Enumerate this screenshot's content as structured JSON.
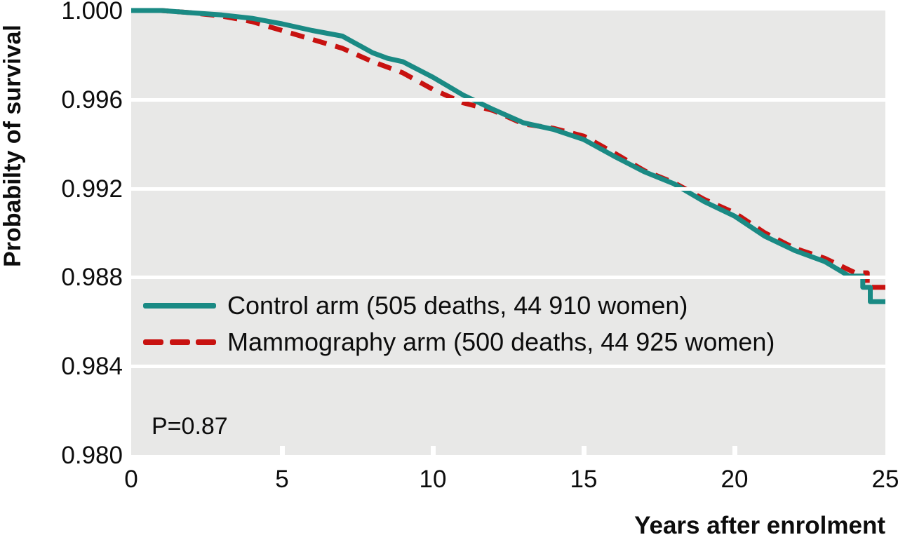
{
  "chart_data": {
    "type": "line",
    "title": "",
    "xlabel": "Years after enrolment",
    "ylabel": "Probabilty of survival",
    "xlim": [
      0,
      25
    ],
    "ylim": [
      0.98,
      1.0
    ],
    "x_ticks": [
      "0",
      "5",
      "10",
      "15",
      "20",
      "25"
    ],
    "x_tick_values": [
      0,
      5,
      10,
      15,
      20,
      25
    ],
    "x_tick_marks": [
      5,
      10,
      15,
      20
    ],
    "y_ticks": [
      "1.000",
      "0.996",
      "0.992",
      "0.988",
      "0.984",
      "0.980"
    ],
    "y_tick_values": [
      1.0,
      0.996,
      0.992,
      0.988,
      0.984,
      0.98
    ],
    "y_gridlines": [
      0.996,
      0.992,
      0.988,
      0.984
    ],
    "grid": "horizontal-white-on-gray",
    "legend_position": "inside-left-middle",
    "p_value_label": "P=0.87",
    "colors": {
      "plot_background": "#e8e8e7",
      "gridline": "#ffffff",
      "text": "#0d0d0d",
      "control": "#1a8a84",
      "mammography": "#c81210"
    },
    "series": [
      {
        "name": "Mammography arm (500 deaths, 44 925 women)",
        "color": "#c81210",
        "style": "dashed",
        "points": [
          [
            0,
            1.0
          ],
          [
            1,
            1.0
          ],
          [
            2,
            0.9999
          ],
          [
            3,
            0.99975
          ],
          [
            4,
            0.9995
          ],
          [
            5,
            0.9991
          ],
          [
            6,
            0.9987
          ],
          [
            7,
            0.9983
          ],
          [
            8,
            0.9977
          ],
          [
            9,
            0.9972
          ],
          [
            10,
            0.99645
          ],
          [
            11,
            0.99585
          ],
          [
            12,
            0.9955
          ],
          [
            13,
            0.9949
          ],
          [
            14,
            0.9947
          ],
          [
            15,
            0.99435
          ],
          [
            16,
            0.9936
          ],
          [
            17,
            0.9928
          ],
          [
            18,
            0.99225
          ],
          [
            19,
            0.9915
          ],
          [
            20,
            0.9909
          ],
          [
            21,
            0.99
          ],
          [
            22,
            0.9893
          ],
          [
            23,
            0.98885
          ],
          [
            24,
            0.9882
          ],
          [
            24.4,
            0.9882
          ],
          [
            24.4,
            0.98755
          ],
          [
            25,
            0.98755
          ]
        ]
      },
      {
        "name": "Control arm (505 deaths, 44 910 women)",
        "color": "#1a8a84",
        "style": "solid",
        "points": [
          [
            0,
            1.0
          ],
          [
            1,
            1.0
          ],
          [
            2,
            0.9999
          ],
          [
            3,
            0.9998
          ],
          [
            4,
            0.99965
          ],
          [
            5,
            0.9994
          ],
          [
            6,
            0.9991
          ],
          [
            7,
            0.99885
          ],
          [
            8,
            0.9981
          ],
          [
            8.5,
            0.99785
          ],
          [
            9,
            0.9977
          ],
          [
            10,
            0.997
          ],
          [
            11,
            0.9962
          ],
          [
            12,
            0.99555
          ],
          [
            13,
            0.99495
          ],
          [
            14,
            0.99465
          ],
          [
            15,
            0.9942
          ],
          [
            16,
            0.99345
          ],
          [
            17,
            0.99275
          ],
          [
            18,
            0.9922
          ],
          [
            19,
            0.9914
          ],
          [
            20,
            0.99075
          ],
          [
            21,
            0.98985
          ],
          [
            22,
            0.9892
          ],
          [
            23,
            0.9887
          ],
          [
            23.8,
            0.98805
          ],
          [
            24.25,
            0.98805
          ],
          [
            24.25,
            0.98755
          ],
          [
            24.5,
            0.98755
          ],
          [
            24.5,
            0.9869
          ],
          [
            25,
            0.9869
          ]
        ]
      }
    ],
    "legend_order": [
      "Control arm (505 deaths, 44 910 women)",
      "Mammography arm (500 deaths, 44 925 women)"
    ]
  }
}
